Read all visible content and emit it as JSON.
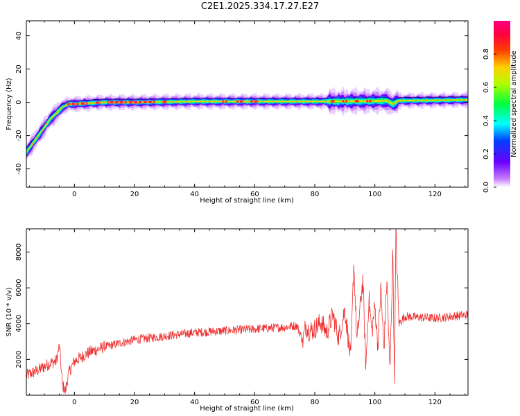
{
  "title": "C2E1.2025.334.17.27.E27",
  "chart_data": [
    {
      "type": "heatmap",
      "xlabel": "Height of straight line (km)",
      "ylabel": "Frequency (Hz)",
      "xlim": [
        -16,
        131
      ],
      "ylim": [
        -51,
        49
      ],
      "xticks": [
        0,
        20,
        40,
        60,
        80,
        100,
        120
      ],
      "yticks": [
        -40,
        -20,
        0,
        20,
        40
      ],
      "colorbar": {
        "label": "Normalized spectral amplitude",
        "range": [
          0.0,
          1.0
        ],
        "ticks": [
          0.0,
          0.2,
          0.4,
          0.6,
          0.8
        ],
        "colormap": "rainbow (purple-blue-cyan-green-yellow-orange-red-pink)"
      },
      "ridge": {
        "x": [
          -16,
          -12,
          -8,
          -4,
          -2,
          0,
          10,
          20,
          40,
          60,
          80,
          100,
          104,
          106,
          108,
          120,
          131
        ],
        "frequency": [
          -30,
          -20,
          -10,
          -3,
          -1,
          -1,
          0,
          0,
          0.5,
          0.5,
          0.5,
          0.8,
          1,
          -1,
          1,
          1.2,
          1.5
        ]
      },
      "grid": false
    },
    {
      "type": "line",
      "xlabel": "Height of straight line (km)",
      "ylabel": "SNR (10 * v/v)",
      "xlim": [
        -16,
        131
      ],
      "ylim": [
        0,
        9300
      ],
      "xticks": [
        0,
        20,
        40,
        60,
        80,
        100,
        120
      ],
      "yticks": [
        2000,
        4000,
        6000,
        8000
      ],
      "color": "#ee3030",
      "series": [
        {
          "x": [
            -16,
            -12,
            -8,
            -6,
            -5,
            -4,
            -3,
            -2,
            0,
            5,
            10,
            15,
            20,
            30,
            40,
            50,
            60,
            70,
            74,
            75,
            76,
            77,
            78,
            80,
            82,
            84,
            86,
            88,
            90,
            92,
            93,
            94,
            96,
            97,
            98,
            99,
            100,
            101,
            102,
            103,
            104,
            105,
            106,
            106.5,
            107,
            108,
            110,
            120,
            131
          ],
          "y": [
            1100,
            1400,
            1800,
            1900,
            2800,
            600,
            200,
            1200,
            1900,
            2400,
            2700,
            2900,
            3100,
            3300,
            3500,
            3600,
            3700,
            3800,
            3900,
            3500,
            3000,
            3900,
            3600,
            3700,
            4100,
            3500,
            4500,
            3200,
            4800,
            2000,
            7500,
            3000,
            6500,
            1500,
            5500,
            3500,
            5000,
            2800,
            6000,
            2500,
            6500,
            1200,
            8200,
            500,
            9200,
            4000,
            4400,
            4300,
            4500
          ]
        }
      ],
      "grid": false
    }
  ]
}
